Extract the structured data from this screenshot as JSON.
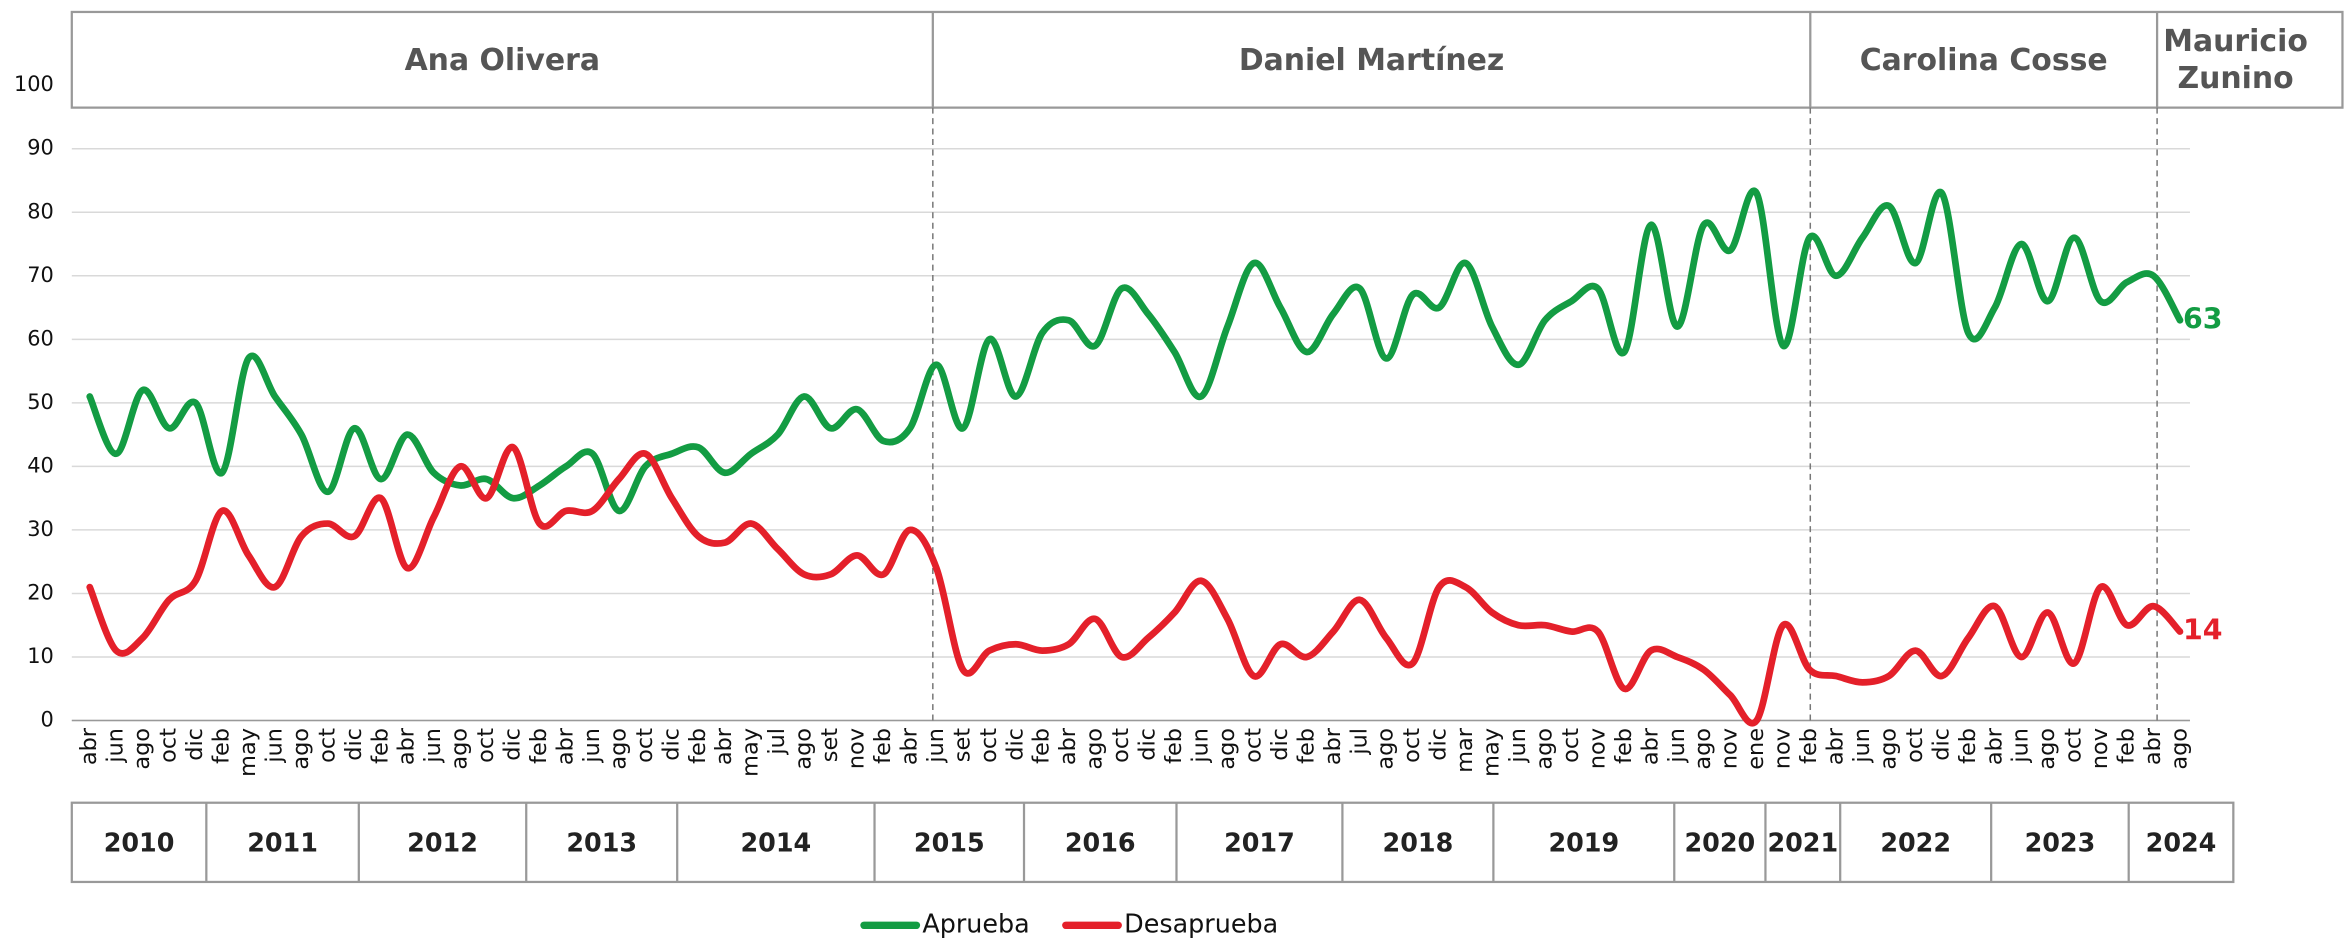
{
  "chart_data": {
    "type": "line",
    "periods": [
      "Ana Olivera",
      "Daniel Martínez",
      "Carolina Cosse",
      "Mauricio Zunino"
    ],
    "years": [
      "2010",
      "2011",
      "2012",
      "2013",
      "2014",
      "2015",
      "2016",
      "2017",
      "2018",
      "2019",
      "2020",
      "2021",
      "2022",
      "2023",
      "2024"
    ],
    "categories": [
      "abr",
      "jun",
      "ago",
      "oct",
      "dic",
      "feb",
      "may",
      "jun",
      "ago",
      "oct",
      "dic",
      "feb",
      "abr",
      "jun",
      "ago",
      "oct",
      "dic",
      "feb",
      "abr",
      "jun",
      "ago",
      "oct",
      "dic",
      "feb",
      "abr",
      "may",
      "jul",
      "ago",
      "set",
      "nov",
      "feb",
      "abr",
      "jun",
      "set",
      "oct",
      "dic",
      "feb",
      "abr",
      "ago",
      "oct",
      "dic",
      "feb",
      "jun",
      "ago",
      "oct",
      "dic",
      "feb",
      "abr",
      "jul",
      "ago",
      "oct",
      "dic",
      "mar",
      "may",
      "jun",
      "ago",
      "oct",
      "nov",
      "feb",
      "abr",
      "jun",
      "ago",
      "nov",
      "ene",
      "nov",
      "feb",
      "abr",
      "jun",
      "ago",
      "oct",
      "dic",
      "feb",
      "abr",
      "jun",
      "ago",
      "oct",
      "nov",
      "feb",
      "abr",
      "ago"
    ],
    "series": [
      {
        "name": "Aprueba",
        "color": "#139c43",
        "values": [
          51,
          42,
          52,
          46,
          50,
          39,
          57,
          51,
          45,
          36,
          46,
          38,
          45,
          39,
          37,
          38,
          35,
          37,
          40,
          42,
          33,
          40,
          42,
          43,
          39,
          42,
          45,
          51,
          46,
          49,
          44,
          46,
          56,
          46,
          60,
          51,
          61,
          63,
          59,
          68,
          64,
          58,
          51,
          62,
          72,
          65,
          58,
          64,
          68,
          57,
          67,
          65,
          72,
          62,
          56,
          63,
          66,
          68,
          58,
          78,
          62,
          78,
          74,
          83,
          59,
          76,
          70,
          76,
          81,
          72,
          83,
          61,
          65,
          75,
          66,
          76,
          66,
          69,
          70,
          63
        ]
      },
      {
        "name": "Desaprueba",
        "color": "#e4202a",
        "values": [
          21,
          11,
          13,
          19,
          22,
          33,
          26,
          21,
          29,
          31,
          29,
          35,
          24,
          32,
          40,
          35,
          43,
          31,
          33,
          33,
          38,
          42,
          35,
          29,
          28,
          31,
          27,
          23,
          23,
          26,
          23,
          30,
          24,
          8,
          11,
          12,
          11,
          12,
          16,
          10,
          13,
          17,
          22,
          16,
          7,
          12,
          10,
          14,
          19,
          13,
          9,
          21,
          21,
          17,
          15,
          15,
          14,
          14,
          5,
          11,
          10,
          8,
          4,
          0,
          15,
          8,
          7,
          6,
          7,
          11,
          7,
          13,
          18,
          10,
          17,
          9,
          21,
          15,
          18,
          14
        ]
      }
    ],
    "ylim": [
      0,
      100
    ],
    "yticks": [
      0,
      10,
      20,
      30,
      40,
      50,
      60,
      70,
      80,
      90,
      100
    ],
    "grid": true,
    "legend": "bottom"
  }
}
